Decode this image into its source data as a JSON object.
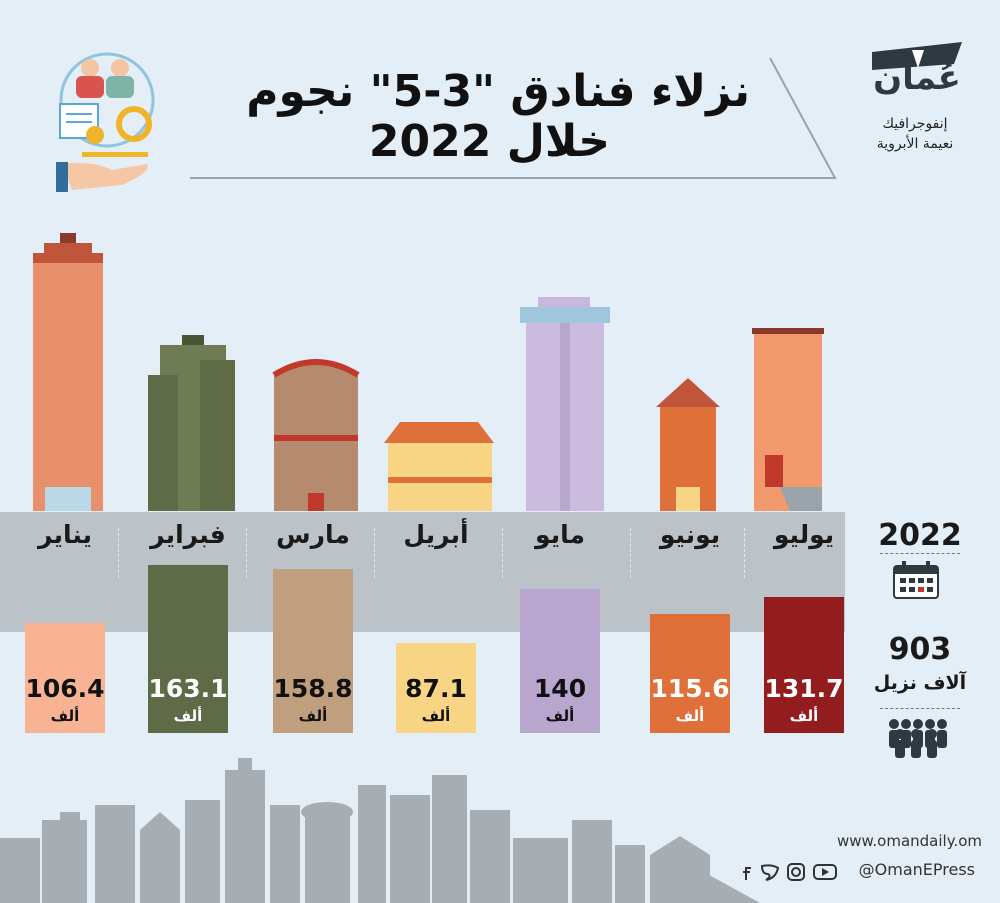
{
  "title": {
    "line1": "نزلاء فنادق \"3-5\" نجوم",
    "line2": "خلال 2022"
  },
  "brand": {
    "logo_text": "عُمان",
    "credit_line1": "إنفوجرافيك",
    "credit_line2": "نعيمة الأبروية"
  },
  "summary": {
    "year": "2022",
    "total": "903",
    "total_unit": "آلاف نزيل",
    "calendar_icon": "calendar-icon",
    "people_icon": "people-group-icon"
  },
  "footer": {
    "website": "www.omandaily.om",
    "handle": "@OmanEPress",
    "social_icons": [
      "facebook-icon",
      "twitter-icon",
      "instagram-icon",
      "youtube-icon"
    ]
  },
  "colors": {
    "background": "#e4eef6",
    "band": "#bcc3c8",
    "skyline": "#a6adb3"
  },
  "chart_data": {
    "type": "bar",
    "categories": [
      "يناير",
      "فبراير",
      "مارس",
      "أبريل",
      "مايو",
      "يونيو",
      "يوليو"
    ],
    "values": [
      106.4,
      163.1,
      158.8,
      87.1,
      140,
      115.6,
      131.7
    ],
    "value_labels": [
      "106.4",
      "163.1",
      "158.8",
      "87.1",
      "140",
      "115.6",
      "131.7"
    ],
    "unit_label": "ألف",
    "bar_colors": [
      "#f7b393",
      "#5f6a47",
      "#bf9f7d",
      "#f8d585",
      "#b9a6ce",
      "#e0703a",
      "#921c1e"
    ],
    "value_text_colors": [
      "#111111",
      "#ffffff",
      "#111111",
      "#111111",
      "#111111",
      "#ffffff",
      "#ffffff"
    ],
    "unit_text_colors": [
      "#111111",
      "#ffffff",
      "#111111",
      "#111111",
      "#111111",
      "#ffffff",
      "#ffffff"
    ]
  }
}
